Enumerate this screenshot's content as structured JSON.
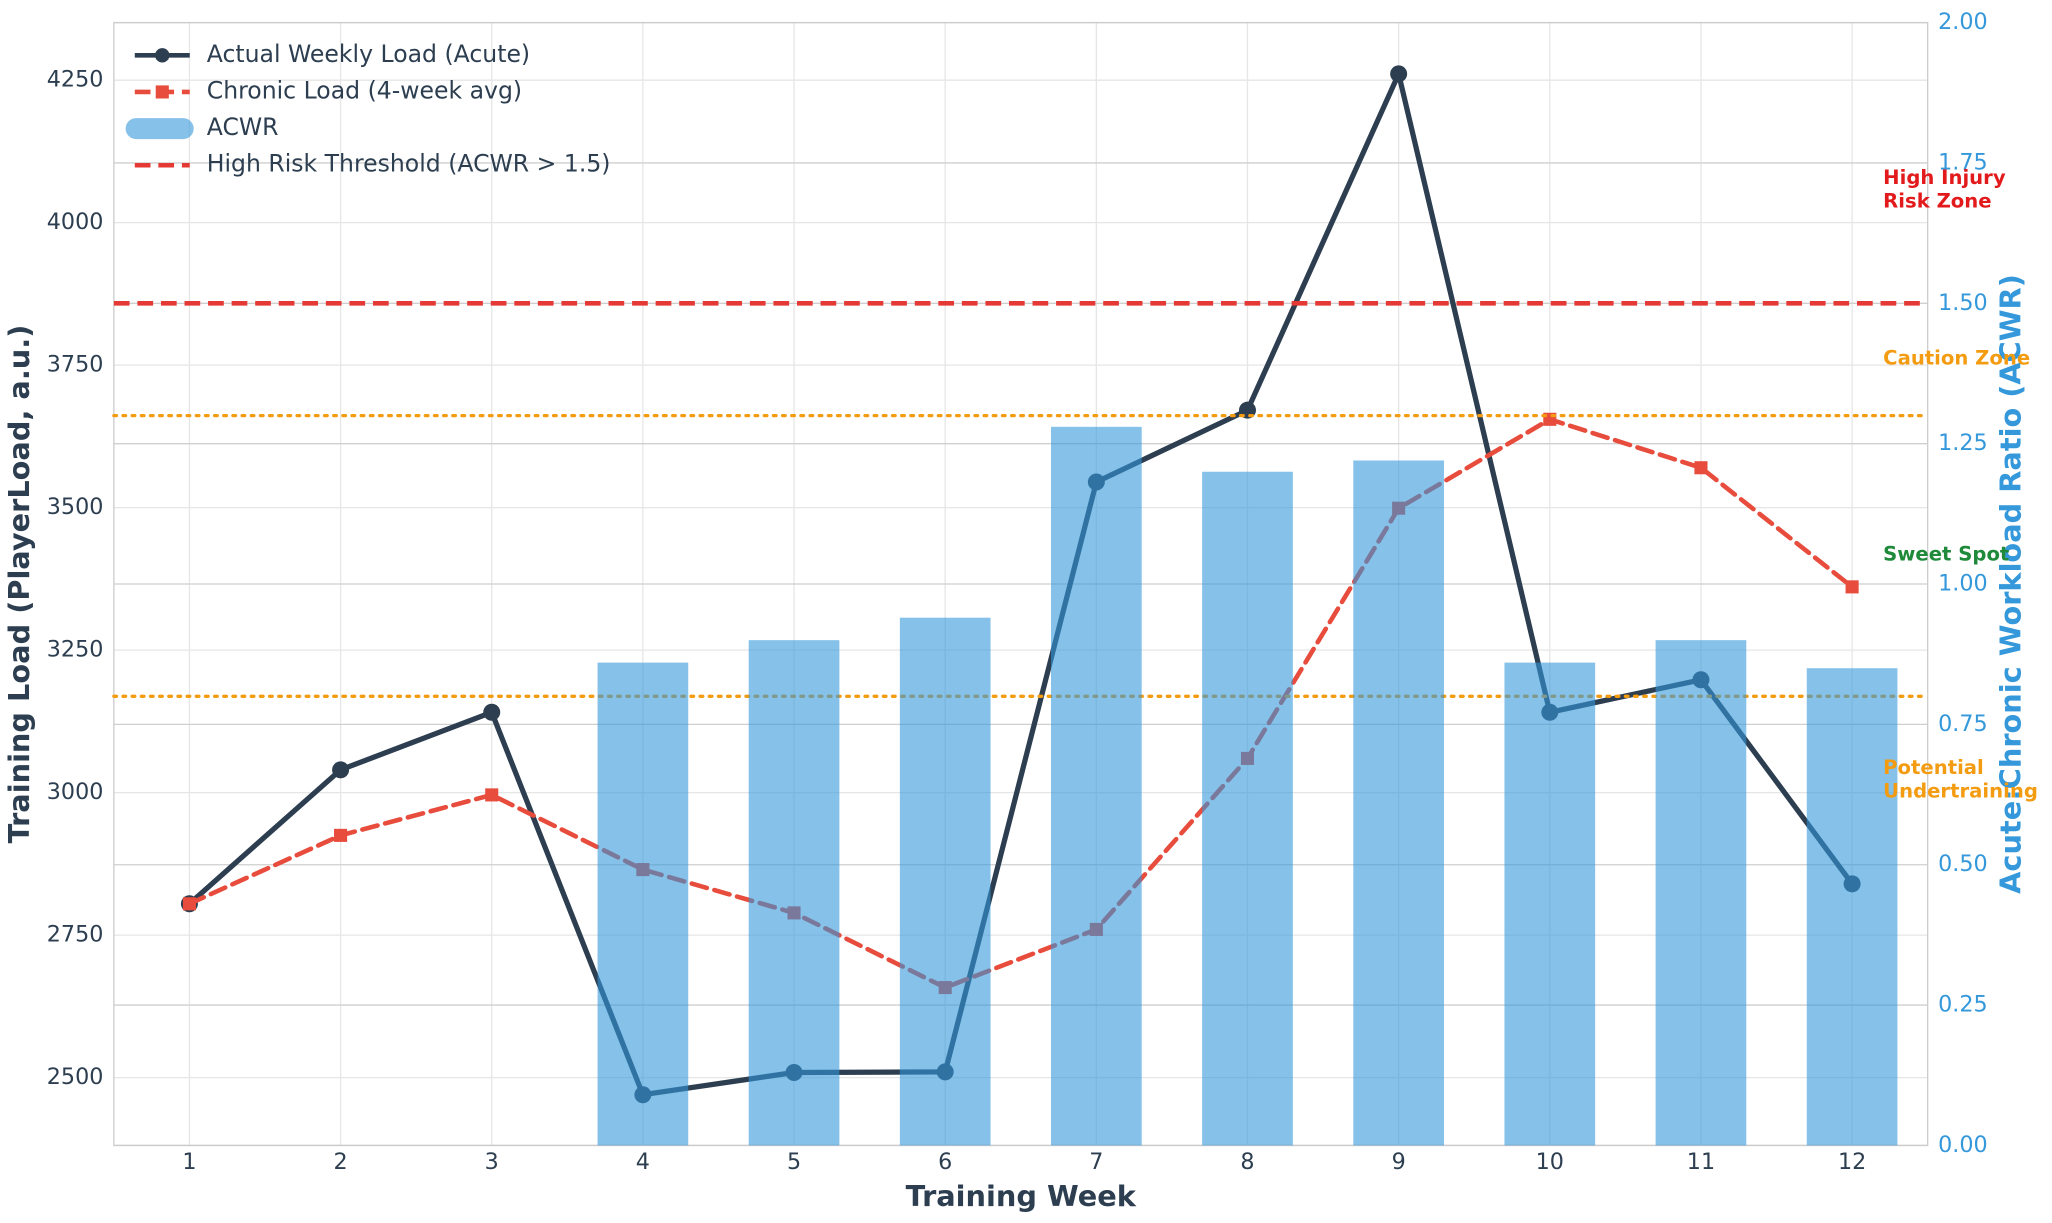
{
  "chart_data": {
    "type": "line_bar_combo",
    "x_label": "Training Week",
    "y_label": "Training Load (PlayerLoad, a.u.)",
    "y2_label": "Acute:Chronic Workload Ratio (ACWR)",
    "x": [
      1,
      2,
      3,
      4,
      5,
      6,
      7,
      8,
      9,
      10,
      11,
      12
    ],
    "xlim": [
      0.5,
      12.5
    ],
    "xticks": [
      1,
      2,
      3,
      4,
      5,
      6,
      7,
      8,
      9,
      10,
      11,
      12
    ],
    "ylim": [
      2381,
      4351
    ],
    "yticks": [
      2500,
      2750,
      3000,
      3250,
      3500,
      3750,
      4000,
      4250
    ],
    "y2lim": [
      0,
      2
    ],
    "y2ticks": [
      {
        "value": 0,
        "label": "0.00"
      },
      {
        "value": 0.25,
        "label": "0.25"
      },
      {
        "value": 0.5,
        "label": "0.50"
      },
      {
        "value": 0.75,
        "label": "0.75"
      },
      {
        "value": 1,
        "label": "1.00"
      },
      {
        "value": 1.25,
        "label": "1.25"
      },
      {
        "value": 1.5,
        "label": "1.50"
      },
      {
        "value": 1.75,
        "label": "1.75"
      },
      {
        "value": 2,
        "label": "2.00"
      }
    ],
    "grid": true,
    "legend": "upper-left",
    "series": [
      {
        "name": "Actual Weekly Load (Acute)",
        "type": "line",
        "color": "#2c3e50",
        "marker": "circle",
        "values": [
          2805,
          3040,
          3141,
          2470,
          2509,
          2510,
          3545,
          3671,
          4261,
          3141,
          3198,
          2840
        ]
      },
      {
        "name": "Chronic Load (4-week avg)",
        "type": "line",
        "style": "dashed",
        "color": "#e74c3c",
        "marker": "square",
        "values": [
          2805,
          2925,
          2996,
          2865,
          2789,
          2658,
          2760,
          3060,
          3499,
          3655,
          3570,
          3361
        ]
      },
      {
        "name": "ACWR",
        "type": "bar",
        "axis": "y2",
        "color": "#3498db",
        "opacity": 0.6,
        "values": [
          null,
          null,
          null,
          0.86,
          0.9,
          0.94,
          1.28,
          1.2,
          1.22,
          0.86,
          0.9,
          0.85
        ]
      }
    ],
    "reference_lines": [
      {
        "name": "High Risk Threshold (ACWR > 1.5)",
        "axis": "y2",
        "value": 1.5,
        "color": "#e53935",
        "style": "dashed"
      },
      {
        "axis": "y2",
        "value": 1.3,
        "color": "#f39c12",
        "style": "dotted"
      },
      {
        "axis": "y2",
        "value": 0.8,
        "color": "#f39c12",
        "style": "dotted"
      }
    ],
    "annotations": [
      {
        "lines": [
          "High Injury",
          "Risk Zone"
        ],
        "color": "#e31a1c"
      },
      {
        "lines": [
          "Caution Zone"
        ],
        "color": "#f39c12"
      },
      {
        "lines": [
          "Sweet Spot"
        ],
        "color": "#1e8a3a"
      },
      {
        "lines": [
          "Potential",
          "Undertraining"
        ],
        "color": "#f39c12"
      }
    ]
  }
}
